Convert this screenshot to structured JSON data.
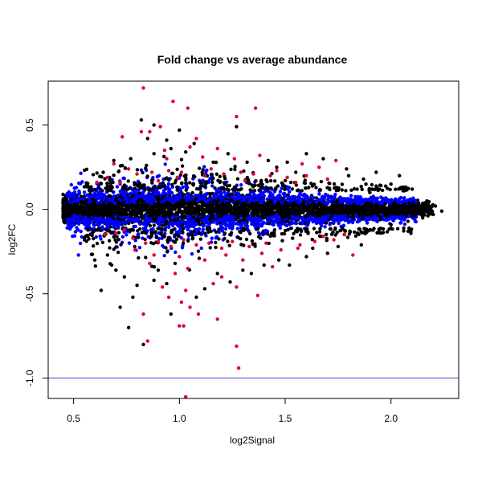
{
  "chart_data": {
    "type": "scatter",
    "title": "Fold change vs average abundance",
    "xlabel": "log2Signal",
    "ylabel": "log2FC",
    "xlim": [
      0.38,
      2.32
    ],
    "ylim": [
      -1.12,
      0.76
    ],
    "xticks": [
      "0.5",
      "1.0",
      "1.5",
      "2.0"
    ],
    "yticks": [
      "-1.0",
      "-0.5",
      "0.0",
      "0.5"
    ],
    "hline": {
      "y": -1.0,
      "color": "#4040c0"
    },
    "colors": {
      "not_significant": "#000000",
      "significant_small": "#0000ff",
      "significant_large": "#e00030"
    },
    "grid": false,
    "legend": "none",
    "series": [
      {
        "key": "red",
        "points": [
          [
            0.83,
            0.72
          ],
          [
            0.97,
            0.64
          ],
          [
            1.36,
            0.6
          ],
          [
            1.04,
            0.6
          ],
          [
            0.91,
            0.49
          ],
          [
            1.27,
            0.55
          ],
          [
            0.86,
            0.46
          ],
          [
            0.82,
            0.46
          ],
          [
            1.08,
            0.42
          ],
          [
            0.73,
            0.43
          ],
          [
            1.11,
            0.31
          ],
          [
            1.18,
            0.36
          ],
          [
            1.05,
            0.37
          ],
          [
            0.93,
            0.35
          ],
          [
            0.94,
            0.3
          ],
          [
            1.26,
            0.3
          ],
          [
            1.38,
            0.32
          ],
          [
            1.74,
            0.29
          ],
          [
            1.58,
            0.27
          ],
          [
            1.66,
            0.25
          ],
          [
            0.69,
            0.27
          ],
          [
            0.76,
            0.24
          ],
          [
            0.8,
            0.21
          ],
          [
            0.87,
            0.22
          ],
          [
            0.95,
            0.23
          ],
          [
            1.01,
            0.22
          ],
          [
            1.12,
            0.2
          ],
          [
            1.21,
            0.21
          ],
          [
            1.29,
            0.22
          ],
          [
            1.35,
            0.21
          ],
          [
            1.43,
            0.2
          ],
          [
            1.51,
            0.19
          ],
          [
            1.6,
            0.2
          ],
          [
            1.7,
            0.18
          ],
          [
            1.46,
            0.23
          ],
          [
            1.15,
            0.24
          ],
          [
            0.99,
            0.19
          ],
          [
            0.66,
            0.19
          ],
          [
            0.61,
            0.16
          ],
          [
            0.9,
            0.17
          ],
          [
            1.31,
            0.17
          ],
          [
            0.72,
            0.16
          ],
          [
            1.55,
            0.16
          ],
          [
            0.7,
            -0.14
          ],
          [
            0.78,
            -0.17
          ],
          [
            0.84,
            -0.2
          ],
          [
            0.9,
            -0.19
          ],
          [
            0.96,
            -0.22
          ],
          [
            1.02,
            -0.18
          ],
          [
            1.08,
            -0.21
          ],
          [
            1.14,
            -0.2
          ],
          [
            1.2,
            -0.23
          ],
          [
            1.25,
            -0.19
          ],
          [
            1.33,
            -0.22
          ],
          [
            1.41,
            -0.2
          ],
          [
            1.48,
            -0.24
          ],
          [
            1.57,
            -0.21
          ],
          [
            1.64,
            -0.19
          ],
          [
            1.73,
            -0.18
          ],
          [
            0.65,
            -0.15
          ],
          [
            0.88,
            -0.27
          ],
          [
            1.0,
            -0.28
          ],
          [
            1.12,
            -0.3
          ],
          [
            1.22,
            -0.27
          ],
          [
            1.3,
            -0.3
          ],
          [
            0.79,
            -0.24
          ],
          [
            1.82,
            -0.27
          ],
          [
            1.2,
            -0.4
          ],
          [
            1.16,
            -0.44
          ],
          [
            1.27,
            -0.46
          ],
          [
            0.98,
            -0.38
          ],
          [
            1.04,
            -0.35
          ],
          [
            0.86,
            -0.32
          ],
          [
            1.44,
            -0.34
          ],
          [
            1.37,
            -0.51
          ],
          [
            0.92,
            -0.46
          ],
          [
            1.03,
            -0.48
          ],
          [
            1.01,
            -0.55
          ],
          [
            1.05,
            -0.58
          ],
          [
            0.95,
            -0.52
          ],
          [
            0.83,
            -0.62
          ],
          [
            1.09,
            -0.62
          ],
          [
            1.0,
            -0.69
          ],
          [
            1.02,
            -0.69
          ],
          [
            0.85,
            -0.78
          ],
          [
            1.18,
            -0.65
          ],
          [
            1.27,
            -0.81
          ],
          [
            1.28,
            -0.94
          ],
          [
            1.03,
            -1.11
          ],
          [
            1.56,
            -0.23
          ],
          [
            1.39,
            -0.26
          ],
          [
            0.74,
            -0.12
          ],
          [
            1.68,
            -0.16
          ],
          [
            1.78,
            -0.15
          ]
        ]
      },
      {
        "key": "black_outliers",
        "points": [
          [
            0.82,
            0.53
          ],
          [
            0.88,
            0.5
          ],
          [
            1.0,
            0.47
          ],
          [
            0.85,
            0.42
          ],
          [
            0.94,
            0.41
          ],
          [
            1.27,
            0.49
          ],
          [
            1.07,
            0.39
          ],
          [
            0.96,
            0.36
          ],
          [
            1.03,
            0.34
          ],
          [
            0.88,
            0.33
          ],
          [
            0.69,
            0.29
          ],
          [
            0.77,
            0.3
          ],
          [
            1.23,
            0.33
          ],
          [
            1.32,
            0.28
          ],
          [
            1.42,
            0.29
          ],
          [
            1.51,
            0.28
          ],
          [
            1.6,
            0.33
          ],
          [
            1.68,
            0.3
          ],
          [
            1.79,
            0.24
          ],
          [
            1.93,
            0.22
          ],
          [
            2.04,
            0.2
          ],
          [
            0.64,
            0.22
          ],
          [
            0.73,
            0.26
          ],
          [
            1.16,
            0.28
          ],
          [
            1.46,
            0.25
          ],
          [
            1.55,
            0.22
          ],
          [
            1.8,
            0.2
          ],
          [
            1.87,
            0.18
          ],
          [
            2.0,
            0.15
          ],
          [
            2.1,
            0.12
          ],
          [
            2.17,
            0.05
          ],
          [
            2.21,
            0.02
          ],
          [
            2.24,
            -0.01
          ],
          [
            2.2,
            -0.03
          ],
          [
            2.15,
            -0.05
          ],
          [
            2.08,
            -0.07
          ],
          [
            2.0,
            -0.09
          ],
          [
            1.95,
            -0.06
          ],
          [
            1.9,
            0.1
          ],
          [
            1.84,
            0.12
          ],
          [
            0.63,
            -0.48
          ],
          [
            0.72,
            -0.58
          ],
          [
            0.76,
            -0.7
          ],
          [
            0.83,
            -0.8
          ],
          [
            0.78,
            -0.52
          ],
          [
            0.8,
            -0.45
          ],
          [
            0.88,
            -0.42
          ],
          [
            0.74,
            -0.4
          ],
          [
            0.96,
            -0.62
          ],
          [
            1.08,
            -0.52
          ],
          [
            1.12,
            -0.47
          ],
          [
            1.24,
            -0.43
          ],
          [
            1.34,
            -0.38
          ],
          [
            1.4,
            -0.33
          ],
          [
            0.94,
            -0.44
          ],
          [
            0.68,
            -0.33
          ],
          [
            0.66,
            -0.27
          ],
          [
            0.9,
            -0.36
          ],
          [
            1.18,
            -0.38
          ],
          [
            1.47,
            -0.3
          ],
          [
            1.6,
            -0.28
          ],
          [
            1.7,
            -0.26
          ],
          [
            1.86,
            -0.21
          ],
          [
            0.98,
            -0.32
          ],
          [
            0.7,
            -0.36
          ],
          [
            1.52,
            -0.33
          ],
          [
            1.63,
            -0.23
          ],
          [
            1.75,
            -0.22
          ],
          [
            1.3,
            -0.36
          ],
          [
            0.6,
            -0.3
          ]
        ]
      }
    ]
  }
}
